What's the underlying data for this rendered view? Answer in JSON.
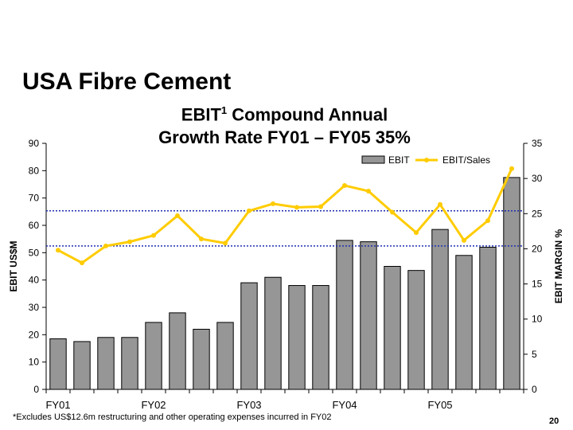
{
  "slide": {
    "title": "USA Fibre Cement",
    "page_number": "20",
    "footnote": "*Excludes US$12.6m restructuring and other operating expenses incurred in FY02"
  },
  "colors": {
    "bar_fill": "#969696",
    "line": "#ffcc00",
    "reference_line": "#1f2fb0"
  },
  "chart_data": {
    "type": "bar",
    "title_prefix": "EBIT",
    "title_sup": "1",
    "title_line1_suffix": " Compound Annual",
    "title_line2": "Growth Rate FY01 – FY05 35%",
    "ylabel": "EBIT US$M",
    "y2label": "EBIT MARGIN %",
    "ylim": [
      0,
      90
    ],
    "y2lim": [
      0,
      35
    ],
    "yticks": [
      "0",
      "10",
      "20",
      "30",
      "40",
      "50",
      "60",
      "70",
      "80",
      "90"
    ],
    "y2ticks": [
      "0",
      "5",
      "10",
      "15",
      "20",
      "25",
      "30",
      "35"
    ],
    "x_labels": [
      "FY01",
      "FY02",
      "FY03",
      "FY04",
      "FY05"
    ],
    "x_label_positions": [
      0.5,
      4.5,
      8.5,
      12.5,
      16.5
    ],
    "legend_position": "top-right",
    "grid": false,
    "series": [
      {
        "name": "EBIT",
        "type": "bar",
        "axis": "left",
        "values": [
          18.5,
          17.5,
          19,
          19,
          24.5,
          28,
          22,
          24.5,
          39,
          41,
          38,
          38,
          54.5,
          54,
          45,
          43.5,
          58.5,
          49,
          52,
          77.5
        ]
      },
      {
        "name": "EBIT/Sales",
        "type": "line",
        "axis": "right",
        "values": [
          19.8,
          18.0,
          20.4,
          21.0,
          21.9,
          24.7,
          21.4,
          20.8,
          25.4,
          26.4,
          25.9,
          26.0,
          29.0,
          28.2,
          25.2,
          22.3,
          26.3,
          21.2,
          24.0,
          31.4
        ]
      }
    ],
    "reference_lines": [
      {
        "axis": "right",
        "value": 20.4
      },
      {
        "axis": "right",
        "value": 25.4
      }
    ]
  }
}
